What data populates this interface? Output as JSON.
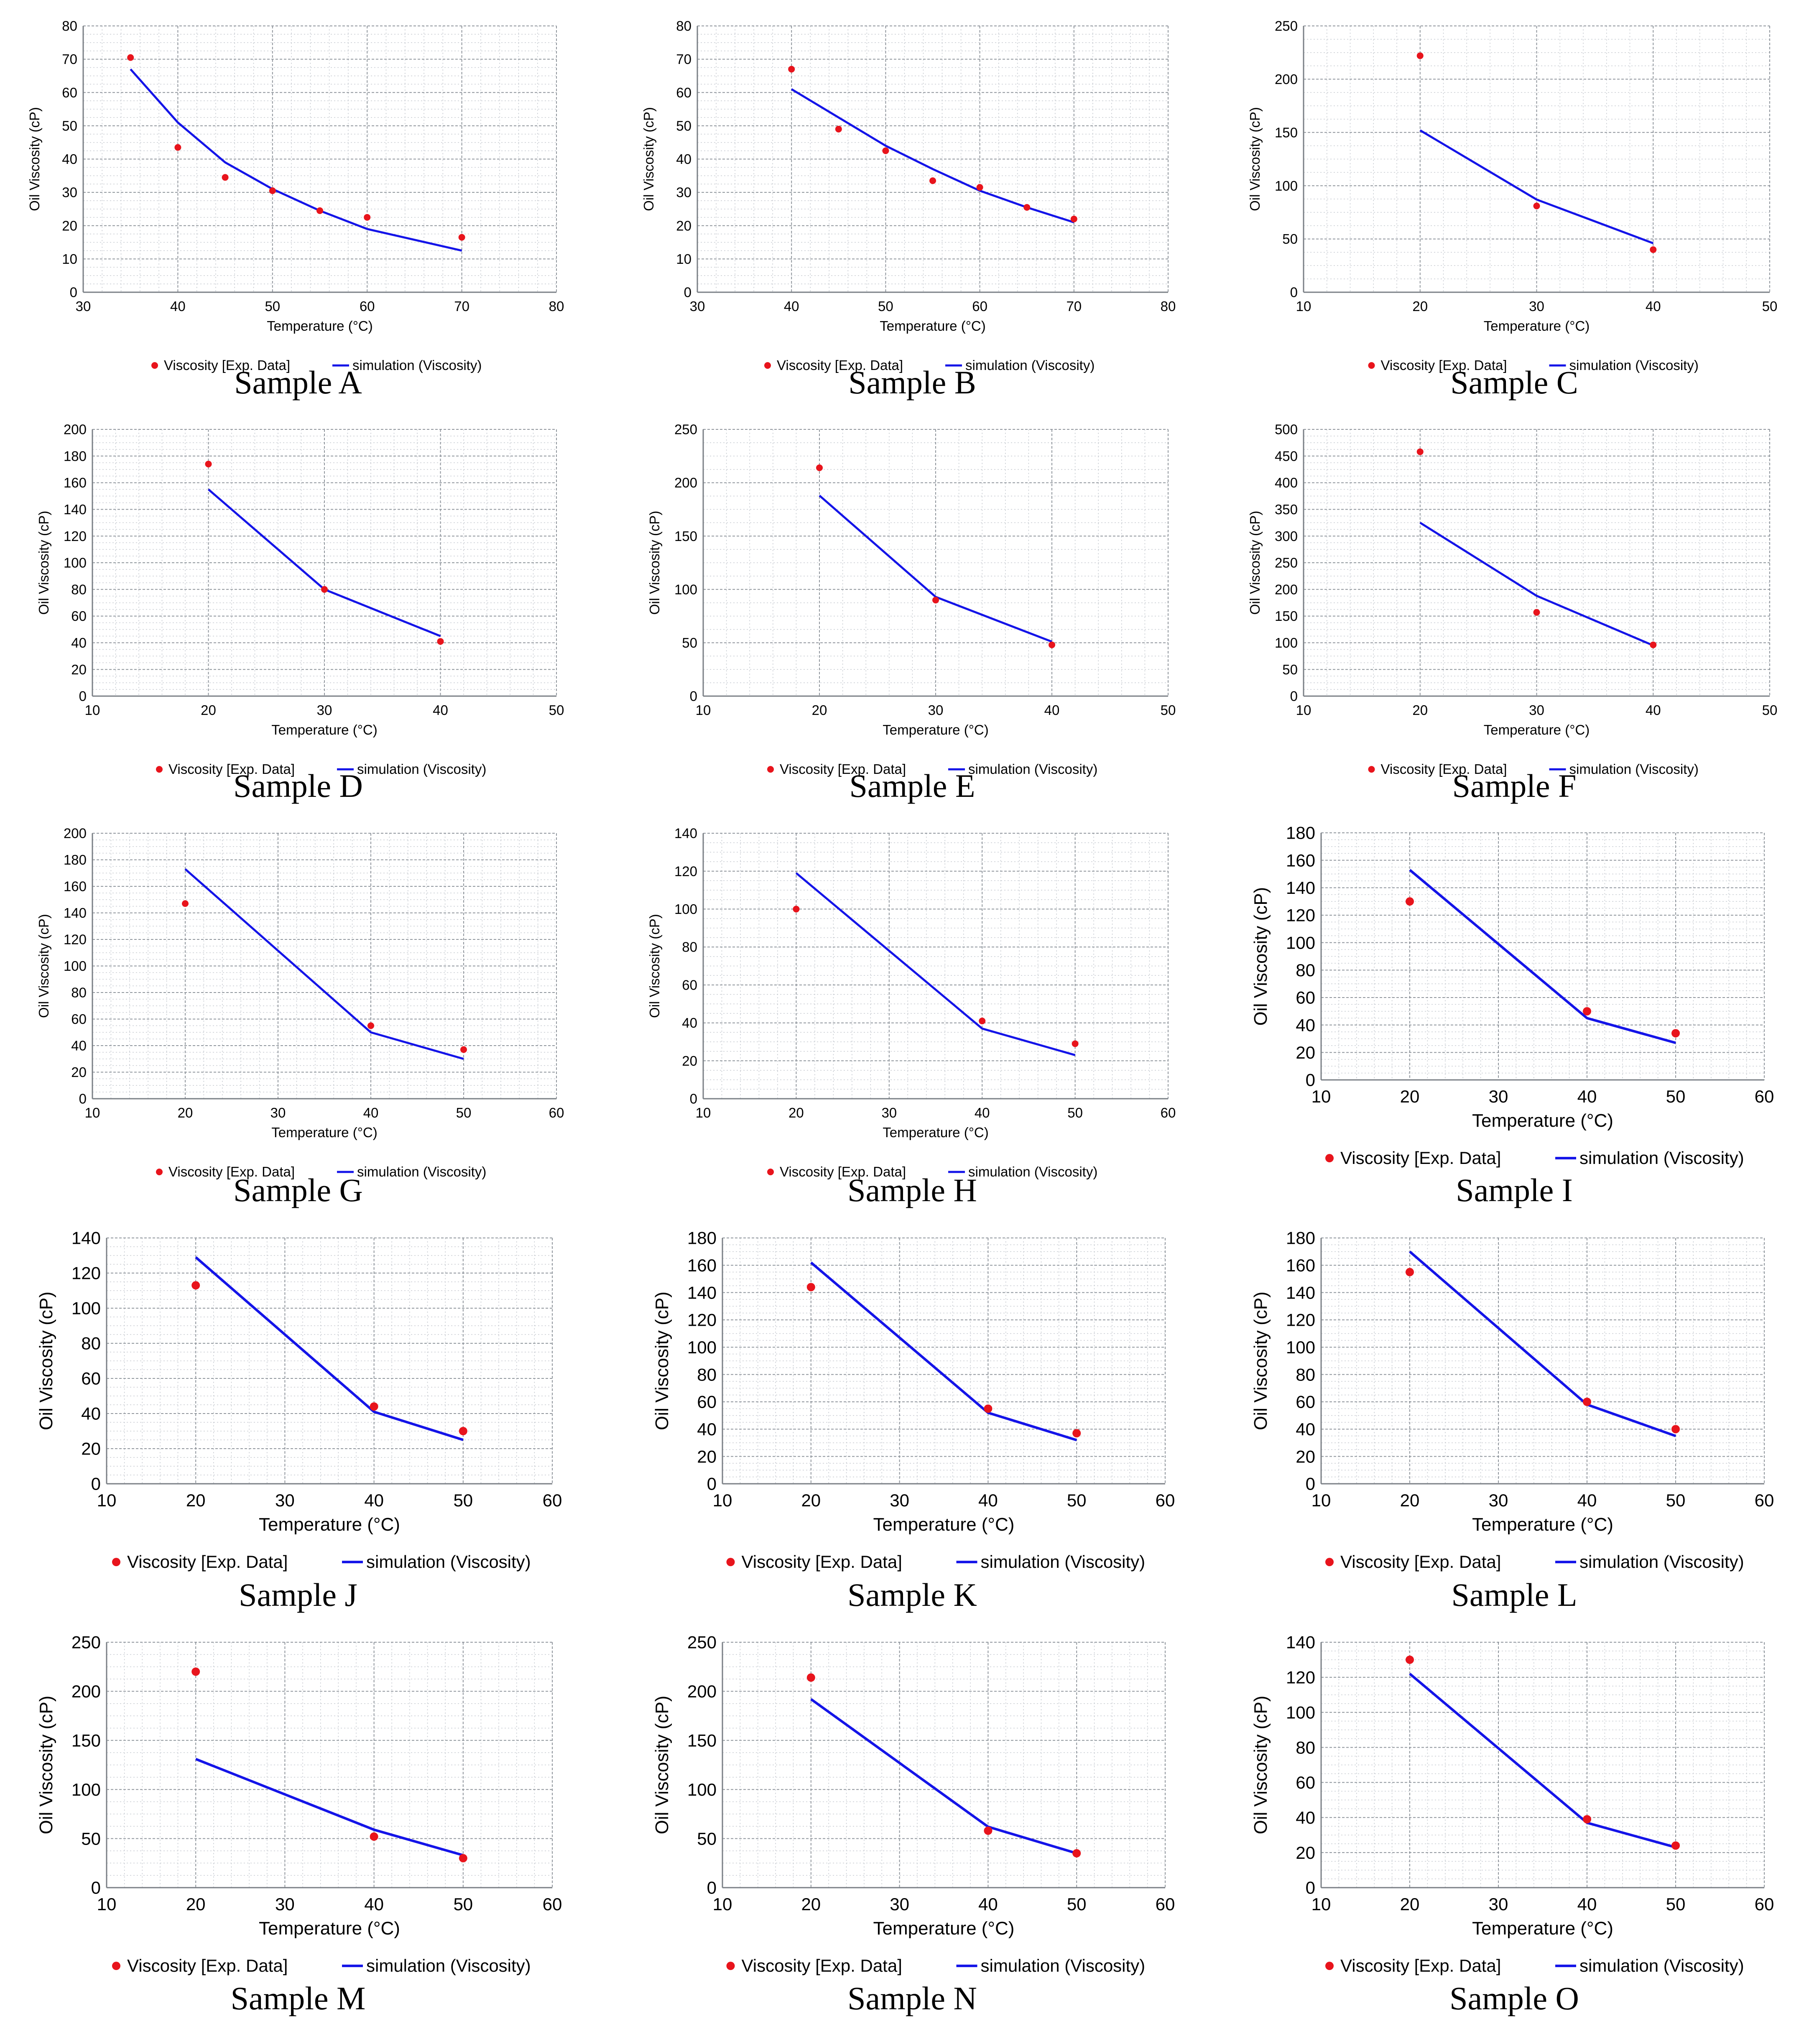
{
  "chart_data": [
    {
      "id": "A",
      "type": "line+scatter",
      "title": "Sample A",
      "xlabel": "Temperature (°C)",
      "ylabel": "Oil Viscosity (cP)",
      "xlim": [
        30,
        80
      ],
      "xtick_step": 10,
      "ylim": [
        0,
        80
      ],
      "ytick_step": 10,
      "series": [
        {
          "name": "Viscosity [Exp. Data]",
          "kind": "scatter",
          "color": "#e8141c",
          "x": [
            35,
            40,
            45,
            50,
            55,
            60,
            70
          ],
          "y": [
            70.5,
            43.5,
            34.5,
            30.5,
            24.5,
            22.5,
            16.5
          ]
        },
        {
          "name": "simulation (Viscosity)",
          "kind": "line",
          "color": "#1414e8",
          "x": [
            35,
            40,
            45,
            50,
            55,
            60,
            70
          ],
          "y": [
            67,
            51,
            39,
            31,
            24.5,
            19,
            12.5
          ]
        }
      ]
    },
    {
      "id": "B",
      "type": "line+scatter",
      "title": "Sample B",
      "xlabel": "Temperature (°C)",
      "ylabel": "Oil Viscosity (cP)",
      "xlim": [
        30,
        80
      ],
      "xtick_step": 10,
      "ylim": [
        0,
        80
      ],
      "ytick_step": 10,
      "series": [
        {
          "name": "Viscosity [Exp. Data]",
          "kind": "scatter",
          "color": "#e8141c",
          "x": [
            40,
            45,
            50,
            55,
            60,
            65,
            70
          ],
          "y": [
            67,
            49,
            42.5,
            33.5,
            31.5,
            25.5,
            22
          ]
        },
        {
          "name": "simulation (Viscosity)",
          "kind": "line",
          "color": "#1414e8",
          "x": [
            40,
            45,
            50,
            55,
            60,
            65,
            70
          ],
          "y": [
            61,
            52.5,
            44,
            37,
            30.5,
            25.5,
            21
          ]
        }
      ]
    },
    {
      "id": "C",
      "type": "line+scatter",
      "title": "Sample C",
      "xlabel": "Temperature (°C)",
      "ylabel": "Oil Viscosity (cP)",
      "xlim": [
        10,
        50
      ],
      "xtick_step": 10,
      "ylim": [
        0,
        250
      ],
      "ytick_step": 50,
      "series": [
        {
          "name": "Viscosity [Exp. Data]",
          "kind": "scatter",
          "color": "#e8141c",
          "x": [
            20,
            30,
            40
          ],
          "y": [
            222,
            81,
            40
          ]
        },
        {
          "name": "simulation (Viscosity)",
          "kind": "line",
          "color": "#1414e8",
          "x": [
            20,
            30,
            40
          ],
          "y": [
            152,
            87,
            46
          ]
        }
      ]
    },
    {
      "id": "D",
      "type": "line+scatter",
      "title": "Sample D",
      "xlabel": "Temperature (°C)",
      "ylabel": "Oil Viscosity (cP)",
      "xlim": [
        10,
        50
      ],
      "xtick_step": 10,
      "ylim": [
        0,
        200
      ],
      "ytick_step": 20,
      "series": [
        {
          "name": "Viscosity [Exp. Data]",
          "kind": "scatter",
          "color": "#e8141c",
          "x": [
            20,
            30,
            40
          ],
          "y": [
            174,
            80,
            41
          ]
        },
        {
          "name": "simulation (Viscosity)",
          "kind": "line",
          "color": "#1414e8",
          "x": [
            20,
            30,
            40
          ],
          "y": [
            155,
            80,
            45
          ]
        }
      ]
    },
    {
      "id": "E",
      "type": "line+scatter",
      "title": "Sample E",
      "xlabel": "Temperature (°C)",
      "ylabel": "Oil Viscosity (cP)",
      "xlim": [
        10,
        50
      ],
      "xtick_step": 10,
      "ylim": [
        0,
        250
      ],
      "ytick_step": 50,
      "series": [
        {
          "name": "Viscosity [Exp. Data]",
          "kind": "scatter",
          "color": "#e8141c",
          "x": [
            20,
            30,
            40
          ],
          "y": [
            214,
            90,
            48
          ]
        },
        {
          "name": "simulation (Viscosity)",
          "kind": "line",
          "color": "#1414e8",
          "x": [
            20,
            30,
            40
          ],
          "y": [
            188,
            93,
            51
          ]
        }
      ]
    },
    {
      "id": "F",
      "type": "line+scatter",
      "title": "Sample F",
      "xlabel": "Temperature (°C)",
      "ylabel": "Oil Viscosity (cP)",
      "xlim": [
        10,
        50
      ],
      "xtick_step": 10,
      "ylim": [
        0,
        500
      ],
      "ytick_step": 50,
      "series": [
        {
          "name": "Viscosity [Exp. Data]",
          "kind": "scatter",
          "color": "#e8141c",
          "x": [
            20,
            30,
            40
          ],
          "y": [
            458,
            157,
            96
          ]
        },
        {
          "name": "simulation (Viscosity)",
          "kind": "line",
          "color": "#1414e8",
          "x": [
            20,
            30,
            40
          ],
          "y": [
            325,
            188,
            95
          ]
        }
      ]
    },
    {
      "id": "G",
      "type": "line+scatter",
      "title": "Sample G",
      "xlabel": "Temperature (°C)",
      "ylabel": "Oil Viscosity (cP)",
      "xlim": [
        10,
        60
      ],
      "xtick_step": 10,
      "ylim": [
        0,
        200
      ],
      "ytick_step": 20,
      "series": [
        {
          "name": "Viscosity [Exp. Data]",
          "kind": "scatter",
          "color": "#e8141c",
          "x": [
            20,
            40,
            50
          ],
          "y": [
            147,
            55,
            37
          ]
        },
        {
          "name": "simulation (Viscosity)",
          "kind": "line",
          "color": "#1414e8",
          "x": [
            20,
            40,
            50
          ],
          "y": [
            173,
            50,
            30
          ]
        }
      ]
    },
    {
      "id": "H",
      "type": "line+scatter",
      "title": "Sample H",
      "xlabel": "Temperature (°C)",
      "ylabel": "Oil Viscosity (cP)",
      "xlim": [
        10,
        60
      ],
      "xtick_step": 10,
      "ylim": [
        0,
        140
      ],
      "ytick_step": 20,
      "series": [
        {
          "name": "Viscosity [Exp. Data]",
          "kind": "scatter",
          "color": "#e8141c",
          "x": [
            20,
            40,
            50
          ],
          "y": [
            100,
            41,
            29
          ]
        },
        {
          "name": "simulation (Viscosity)",
          "kind": "line",
          "color": "#1414e8",
          "x": [
            20,
            40,
            50
          ],
          "y": [
            119,
            37,
            23
          ]
        }
      ]
    },
    {
      "id": "I",
      "type": "line+scatter",
      "title": "Sample I",
      "xlabel": "Temperature (°C)",
      "ylabel": "Oil Viscosity (cP)",
      "xlim": [
        10,
        60
      ],
      "xtick_step": 10,
      "ylim": [
        0,
        180
      ],
      "ytick_step": 20,
      "series": [
        {
          "name": "Viscosity [Exp. Data]",
          "kind": "scatter",
          "color": "#e8141c",
          "x": [
            20,
            40,
            50
          ],
          "y": [
            130,
            50,
            34
          ]
        },
        {
          "name": "simulation (Viscosity)",
          "kind": "line",
          "color": "#1414e8",
          "x": [
            20,
            40,
            50
          ],
          "y": [
            153,
            45,
            27
          ]
        }
      ]
    },
    {
      "id": "J",
      "type": "line+scatter",
      "title": "Sample J",
      "xlabel": "Temperature (°C)",
      "ylabel": "Oil Viscosity (cP)",
      "xlim": [
        10,
        60
      ],
      "xtick_step": 10,
      "ylim": [
        0,
        140
      ],
      "ytick_step": 20,
      "series": [
        {
          "name": "Viscosity [Exp. Data]",
          "kind": "scatter",
          "color": "#e8141c",
          "x": [
            20,
            40,
            50
          ],
          "y": [
            113,
            44,
            30
          ]
        },
        {
          "name": "simulation (Viscosity)",
          "kind": "line",
          "color": "#1414e8",
          "x": [
            20,
            40,
            50
          ],
          "y": [
            129,
            41,
            25
          ]
        }
      ]
    },
    {
      "id": "K",
      "type": "line+scatter",
      "title": "Sample K",
      "xlabel": "Temperature (°C)",
      "ylabel": "Oil Viscosity (cP)",
      "xlim": [
        10,
        60
      ],
      "xtick_step": 10,
      "ylim": [
        0,
        180
      ],
      "ytick_step": 20,
      "series": [
        {
          "name": "Viscosity [Exp. Data]",
          "kind": "scatter",
          "color": "#e8141c",
          "x": [
            20,
            40,
            50
          ],
          "y": [
            144,
            55,
            37
          ]
        },
        {
          "name": "simulation (Viscosity)",
          "kind": "line",
          "color": "#1414e8",
          "x": [
            20,
            40,
            50
          ],
          "y": [
            162,
            52,
            32
          ]
        }
      ]
    },
    {
      "id": "L",
      "type": "line+scatter",
      "title": "Sample L",
      "xlabel": "Temperature (°C)",
      "ylabel": "Oil Viscosity (cP)",
      "xlim": [
        10,
        60
      ],
      "xtick_step": 10,
      "ylim": [
        0,
        180
      ],
      "ytick_step": 20,
      "series": [
        {
          "name": "Viscosity [Exp. Data]",
          "kind": "scatter",
          "color": "#e8141c",
          "x": [
            20,
            40,
            50
          ],
          "y": [
            155,
            60,
            40
          ]
        },
        {
          "name": "simulation (Viscosity)",
          "kind": "line",
          "color": "#1414e8",
          "x": [
            20,
            40,
            50
          ],
          "y": [
            170,
            58,
            35
          ]
        }
      ]
    },
    {
      "id": "M",
      "type": "line+scatter",
      "title": "Sample M",
      "xlabel": "Temperature (°C)",
      "ylabel": "Oil Viscosity (cP)",
      "xlim": [
        10,
        60
      ],
      "xtick_step": 10,
      "ylim": [
        0,
        250
      ],
      "ytick_step": 50,
      "series": [
        {
          "name": "Viscosity [Exp. Data]",
          "kind": "scatter",
          "color": "#e8141c",
          "x": [
            20,
            40,
            50
          ],
          "y": [
            220,
            52,
            30
          ]
        },
        {
          "name": "simulation (Viscosity)",
          "kind": "line",
          "color": "#1414e8",
          "x": [
            20,
            40,
            50
          ],
          "y": [
            131,
            59,
            33
          ]
        }
      ]
    },
    {
      "id": "N",
      "type": "line+scatter",
      "title": "Sample N",
      "xlabel": "Temperature (°C)",
      "ylabel": "Oil Viscosity (cP)",
      "xlim": [
        10,
        60
      ],
      "xtick_step": 10,
      "ylim": [
        0,
        250
      ],
      "ytick_step": 50,
      "series": [
        {
          "name": "Viscosity [Exp. Data]",
          "kind": "scatter",
          "color": "#e8141c",
          "x": [
            20,
            40,
            50
          ],
          "y": [
            214,
            58,
            35
          ]
        },
        {
          "name": "simulation (Viscosity)",
          "kind": "line",
          "color": "#1414e8",
          "x": [
            20,
            40,
            50
          ],
          "y": [
            192,
            62,
            35
          ]
        }
      ]
    },
    {
      "id": "O",
      "type": "line+scatter",
      "title": "Sample O",
      "xlabel": "Temperature (°C)",
      "ylabel": "Oil Viscosity (cP)",
      "xlim": [
        10,
        60
      ],
      "xtick_step": 10,
      "ylim": [
        0,
        140
      ],
      "ytick_step": 20,
      "series": [
        {
          "name": "Viscosity [Exp. Data]",
          "kind": "scatter",
          "color": "#e8141c",
          "x": [
            20,
            40,
            50
          ],
          "y": [
            130,
            39,
            24
          ]
        },
        {
          "name": "simulation (Viscosity)",
          "kind": "line",
          "color": "#1414e8",
          "x": [
            20,
            40,
            50
          ],
          "y": [
            122,
            37,
            23
          ]
        }
      ]
    }
  ]
}
